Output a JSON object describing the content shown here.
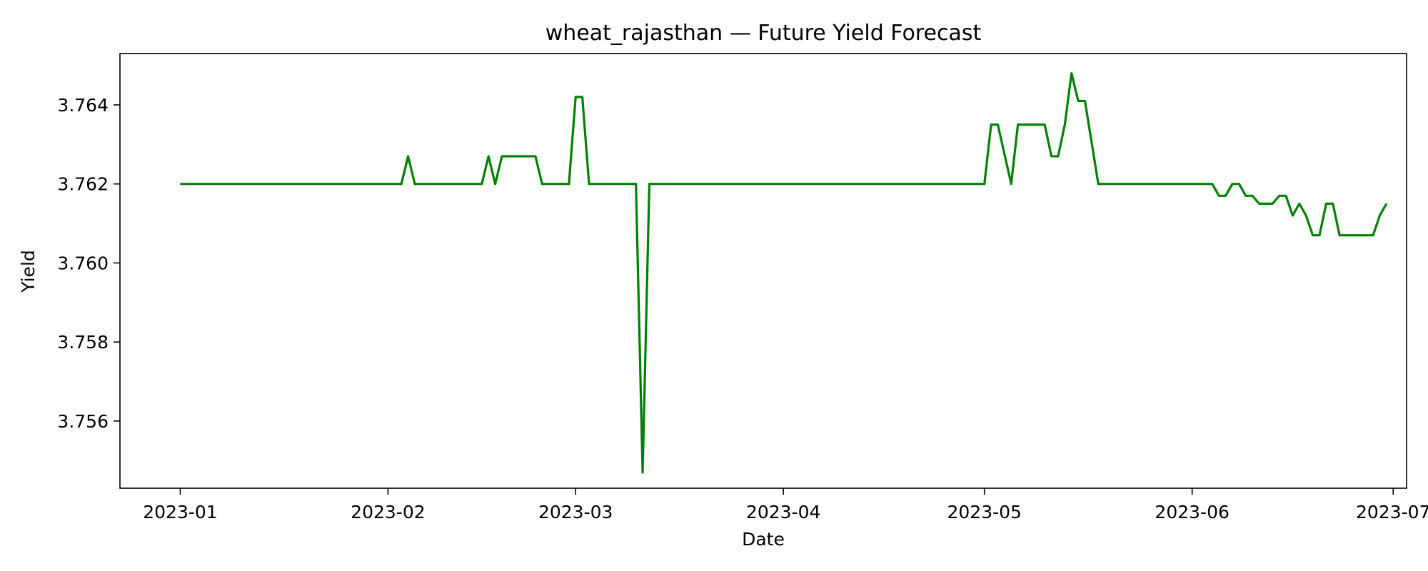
{
  "chart_data": {
    "type": "line",
    "title": "wheat_rajasthan — Future Yield Forecast",
    "xlabel": "Date",
    "ylabel": "Yield",
    "line_color": "#008000",
    "grid": false,
    "legend": "none",
    "xlim": [
      "2022-12-23",
      "2023-07-03"
    ],
    "ylim": [
      3.7543,
      3.7653
    ],
    "x_ticks": [
      {
        "date": "2023-01-01",
        "label": "2023-01"
      },
      {
        "date": "2023-02-01",
        "label": "2023-02"
      },
      {
        "date": "2023-03-01",
        "label": "2023-03"
      },
      {
        "date": "2023-04-01",
        "label": "2023-04"
      },
      {
        "date": "2023-05-01",
        "label": "2023-05"
      },
      {
        "date": "2023-06-01",
        "label": "2023-06"
      },
      {
        "date": "2023-07-01",
        "label": "2023-07"
      }
    ],
    "y_ticks": [
      {
        "value": 3.756,
        "label": "3.756"
      },
      {
        "value": 3.758,
        "label": "3.758"
      },
      {
        "value": 3.76,
        "label": "3.760"
      },
      {
        "value": 3.762,
        "label": "3.762"
      },
      {
        "value": 3.764,
        "label": "3.764"
      }
    ],
    "series": [
      {
        "points": [
          [
            "2023-01-01",
            3.762
          ],
          [
            "2023-02-03",
            3.762
          ],
          [
            "2023-02-04",
            3.7627
          ],
          [
            "2023-02-05",
            3.762
          ],
          [
            "2023-02-15",
            3.762
          ],
          [
            "2023-02-16",
            3.7627
          ],
          [
            "2023-02-17",
            3.762
          ],
          [
            "2023-02-18",
            3.7627
          ],
          [
            "2023-02-23",
            3.7627
          ],
          [
            "2023-02-24",
            3.762
          ],
          [
            "2023-02-28",
            3.762
          ],
          [
            "2023-03-01",
            3.7642
          ],
          [
            "2023-03-02",
            3.7642
          ],
          [
            "2023-03-03",
            3.762
          ],
          [
            "2023-03-10",
            3.762
          ],
          [
            "2023-03-11",
            3.7547
          ],
          [
            "2023-03-12",
            3.762
          ],
          [
            "2023-05-01",
            3.762
          ],
          [
            "2023-05-02",
            3.7635
          ],
          [
            "2023-05-03",
            3.7635
          ],
          [
            "2023-05-05",
            3.762
          ],
          [
            "2023-05-06",
            3.7635
          ],
          [
            "2023-05-10",
            3.7635
          ],
          [
            "2023-05-11",
            3.7627
          ],
          [
            "2023-05-12",
            3.7627
          ],
          [
            "2023-05-13",
            3.7635
          ],
          [
            "2023-05-14",
            3.7648
          ],
          [
            "2023-05-15",
            3.7641
          ],
          [
            "2023-05-16",
            3.7641
          ],
          [
            "2023-05-18",
            3.762
          ],
          [
            "2023-06-04",
            3.762
          ],
          [
            "2023-06-05",
            3.7617
          ],
          [
            "2023-06-06",
            3.7617
          ],
          [
            "2023-06-07",
            3.762
          ],
          [
            "2023-06-08",
            3.762
          ],
          [
            "2023-06-09",
            3.7617
          ],
          [
            "2023-06-10",
            3.7617
          ],
          [
            "2023-06-11",
            3.7615
          ],
          [
            "2023-06-13",
            3.7615
          ],
          [
            "2023-06-14",
            3.7617
          ],
          [
            "2023-06-15",
            3.7617
          ],
          [
            "2023-06-16",
            3.7612
          ],
          [
            "2023-06-17",
            3.7615
          ],
          [
            "2023-06-18",
            3.7612
          ],
          [
            "2023-06-19",
            3.7607
          ],
          [
            "2023-06-20",
            3.7607
          ],
          [
            "2023-06-21",
            3.7615
          ],
          [
            "2023-06-22",
            3.7615
          ],
          [
            "2023-06-23",
            3.7607
          ],
          [
            "2023-06-28",
            3.7607
          ],
          [
            "2023-06-29",
            3.7612
          ],
          [
            "2023-06-30",
            3.7615
          ]
        ]
      }
    ]
  }
}
